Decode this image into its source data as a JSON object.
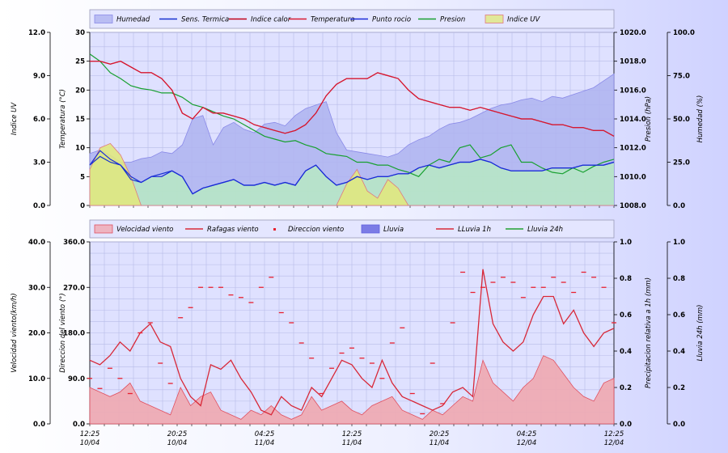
{
  "chart_data": [
    {
      "type": "line",
      "x_tick_labels": [],
      "legend": [
        "Humedad",
        "Sens. Termica",
        "Indice calor",
        "Temperatura",
        "Punto rocio",
        "Presion",
        "Indice UV"
      ],
      "left_axes": [
        {
          "label": "Indice UV",
          "ticks": [
            "12.0",
            "9.0",
            "6.0",
            "3.0",
            "0.0"
          ],
          "range": [
            0,
            12
          ]
        },
        {
          "label": "Temperatura (°C)",
          "ticks": [
            "30",
            "25",
            "20",
            "15",
            "10",
            "5",
            "0"
          ],
          "range": [
            0,
            30
          ]
        }
      ],
      "right_axes": [
        {
          "label": "Presion (hPa)",
          "ticks": [
            "1020.0",
            "1018.0",
            "1016.0",
            "1014.0",
            "1012.0",
            "1010.0",
            "1008.0"
          ],
          "range": [
            1008,
            1020
          ]
        },
        {
          "label": "Humedad (%)",
          "ticks": [
            "100.0",
            "75.0",
            "50.0",
            "25.0",
            "0.0"
          ],
          "range": [
            0,
            100
          ]
        }
      ],
      "series": [
        {
          "name": "Humedad",
          "color": "#8a8ae8",
          "fill": "#aeb3f0",
          "values": [
            30,
            32,
            29,
            25,
            25,
            27,
            28,
            31,
            30,
            35,
            50,
            52,
            35,
            45,
            48,
            44,
            42,
            47,
            48,
            46,
            52,
            56,
            58,
            60,
            42,
            32,
            31,
            30,
            29,
            28,
            30,
            35,
            38,
            40,
            44,
            47,
            48,
            50,
            53,
            56,
            58,
            59,
            61,
            62,
            60,
            63,
            62,
            64,
            66,
            68,
            72,
            76
          ]
        },
        {
          "name": "Sens. Termica",
          "color": "#1530d0",
          "values": [
            7,
            8.5,
            7.5,
            7,
            4.5,
            4,
            5,
            5.5,
            6,
            5,
            2,
            3,
            3.5,
            4,
            4.5,
            3.5,
            3.5,
            4,
            3.5,
            4,
            3.5,
            6,
            7,
            5,
            3.5,
            4,
            5,
            4.5,
            5,
            5,
            5.5,
            5.5,
            6.5,
            7,
            6.5,
            7,
            7.5,
            7.5,
            8,
            7.5,
            6.5,
            6,
            6,
            6,
            6,
            6.5,
            6.5,
            6.5,
            7,
            7,
            7,
            7.5
          ]
        },
        {
          "name": "Indice calor",
          "color": "#c00018",
          "values": [
            25,
            25,
            24.5,
            25,
            24,
            23,
            23,
            22,
            20,
            16,
            15,
            17,
            16,
            16,
            15.5,
            15,
            14,
            13.5,
            13,
            12.5,
            13,
            14,
            16,
            19,
            21,
            22,
            22,
            22,
            23,
            22.5,
            22,
            20,
            18.5,
            18,
            17.5,
            17,
            17,
            16.5,
            17,
            16.5,
            16,
            15.5,
            15,
            15,
            14.5,
            14,
            14,
            13.5,
            13.5,
            13,
            13,
            12
          ]
        },
        {
          "name": "Temperatura",
          "color": "#d81830",
          "values": [
            25,
            25,
            24.5,
            25,
            24,
            23,
            23,
            22,
            20,
            16,
            15,
            17,
            16,
            16,
            15.5,
            15,
            14,
            13.5,
            13,
            12.5,
            13,
            14,
            16,
            19,
            21,
            22,
            22,
            22,
            23,
            22.5,
            22,
            20,
            18.5,
            18,
            17.5,
            17,
            17,
            16.5,
            17,
            16.5,
            16,
            15.5,
            15,
            15,
            14.5,
            14,
            14,
            13.5,
            13.5,
            13,
            13,
            12
          ]
        },
        {
          "name": "Punto rocio",
          "color": "#1a2ad8",
          "values": [
            7,
            9.5,
            8,
            7,
            5,
            4,
            5,
            5,
            6,
            5,
            2,
            3,
            3.5,
            4,
            4.5,
            3.5,
            3.5,
            4,
            3.5,
            4,
            3.5,
            6,
            7,
            5,
            3.5,
            4,
            5,
            4.5,
            5,
            5,
            5.5,
            5.5,
            6.5,
            7,
            6.5,
            7,
            7.5,
            7.5,
            8,
            7.5,
            6.5,
            6,
            6,
            6,
            6,
            6.5,
            6.5,
            6.5,
            7,
            7,
            7,
            7.5
          ]
        },
        {
          "name": "Presion",
          "color": "#18a030",
          "values": [
            1018.5,
            1018.0,
            1017.2,
            1016.8,
            1016.3,
            1016.1,
            1016.0,
            1015.8,
            1015.8,
            1015.5,
            1015.0,
            1014.8,
            1014.5,
            1014.2,
            1014.0,
            1013.6,
            1013.2,
            1012.8,
            1012.6,
            1012.4,
            1012.5,
            1012.2,
            1012.0,
            1011.6,
            1011.5,
            1011.4,
            1011.0,
            1011.0,
            1010.8,
            1010.8,
            1010.5,
            1010.3,
            1010.0,
            1010.8,
            1011.2,
            1011.0,
            1012.0,
            1012.2,
            1011.3,
            1011.5,
            1012.0,
            1012.2,
            1011.0,
            1011.0,
            1010.6,
            1010.3,
            1010.2,
            1010.6,
            1010.3,
            1010.7,
            1011.0,
            1011.2
          ]
        },
        {
          "name": "Indice UV",
          "color": "#e07880",
          "fill": "#e0e880",
          "values": [
            2.5,
            4,
            4.3,
            3.5,
            2,
            0,
            0,
            0,
            0,
            0,
            0,
            0,
            0,
            0,
            0,
            0,
            0,
            0,
            0,
            0,
            0,
            0,
            0,
            0,
            0,
            1.5,
            2.5,
            1,
            0.5,
            1.8,
            1.2,
            0,
            0,
            0,
            0,
            0,
            0,
            0,
            0,
            0,
            0,
            0,
            0,
            0,
            0,
            0,
            0,
            0,
            0,
            0,
            0,
            0
          ]
        }
      ]
    },
    {
      "type": "line",
      "x_tick_labels": [
        {
          "time": "12:25",
          "date": "10/04"
        },
        {
          "time": "20:25",
          "date": "10/04"
        },
        {
          "time": "04:25",
          "date": "11/04"
        },
        {
          "time": "12:25",
          "date": "11/04"
        },
        {
          "time": "20:25",
          "date": "11/04"
        },
        {
          "time": "04:25",
          "date": "12/04"
        },
        {
          "time": "12:25",
          "date": "12/04"
        }
      ],
      "legend": [
        "Velocidad viento",
        "Rafagas viento",
        "Direccion viento",
        "Lluvia",
        "LLuvia 1h",
        "Lluvia 24h"
      ],
      "left_axes": [
        {
          "label": "Velocidad viento(km/h)",
          "ticks": [
            "40.0",
            "30.0",
            "20.0",
            "10.0",
            "0.0"
          ],
          "range": [
            0,
            40
          ]
        },
        {
          "label": "Direccion del viento (°)",
          "ticks": [
            "360.0",
            "270.0",
            "180.0",
            "90.0",
            "0.0"
          ],
          "range": [
            0,
            360
          ]
        }
      ],
      "right_axes": [
        {
          "label": "Precipitacion relativa a 1h (mm)",
          "ticks": [
            "1.0",
            "0.8",
            "0.6",
            "0.4",
            "0.2",
            "0.0"
          ],
          "range": [
            0,
            1
          ]
        },
        {
          "label": "Lluvia 24h (mm)",
          "ticks": [
            "1.0",
            "0.8",
            "0.6",
            "0.4",
            "0.2",
            "0.0"
          ],
          "range": [
            0,
            1
          ]
        }
      ],
      "series": [
        {
          "name": "Velocidad viento",
          "color": "#e05060",
          "fill": "#f0a8b0",
          "values": [
            8,
            7,
            6,
            7,
            9,
            5,
            4,
            3,
            2,
            8,
            4,
            6,
            7,
            3,
            2,
            1,
            3,
            2,
            4,
            2,
            1,
            2,
            6,
            3,
            4,
            5,
            3,
            2,
            4,
            5,
            6,
            3,
            2,
            1,
            3,
            2,
            4,
            6,
            5,
            14,
            9,
            7,
            5,
            8,
            10,
            15,
            14,
            11,
            8,
            6,
            5,
            9,
            10
          ]
        },
        {
          "name": "Rafagas viento",
          "color": "#d82838",
          "values": [
            14,
            13,
            15,
            18,
            16,
            20,
            22,
            18,
            17,
            10,
            6,
            4,
            13,
            12,
            14,
            10,
            7,
            3,
            2,
            6,
            4,
            3,
            8,
            6,
            10,
            14,
            13,
            10,
            8,
            14,
            9,
            6,
            5,
            4,
            3,
            4,
            7,
            8,
            6,
            34,
            22,
            18,
            16,
            18,
            24,
            28,
            28,
            22,
            25,
            20,
            17,
            20,
            21
          ]
        },
        {
          "name": "Direccion viento",
          "color": "#e82030",
          "values": [
            90,
            70,
            110,
            90,
            60,
            180,
            200,
            120,
            80,
            210,
            230,
            270,
            270,
            270,
            255,
            250,
            240,
            270,
            290,
            220,
            200,
            160,
            130,
            60,
            110,
            140,
            150,
            130,
            120,
            90,
            160,
            190,
            60,
            20,
            120,
            40,
            200,
            300,
            260,
            270,
            280,
            290,
            280,
            250,
            270,
            270,
            290,
            280,
            260,
            300,
            290,
            270,
            200
          ]
        },
        {
          "name": "Lluvia",
          "color": "#6060e0",
          "values": []
        },
        {
          "name": "LLuvia 1h",
          "color": "#d82838",
          "values": []
        },
        {
          "name": "Lluvia 24h",
          "color": "#20a030",
          "values": []
        }
      ]
    }
  ]
}
